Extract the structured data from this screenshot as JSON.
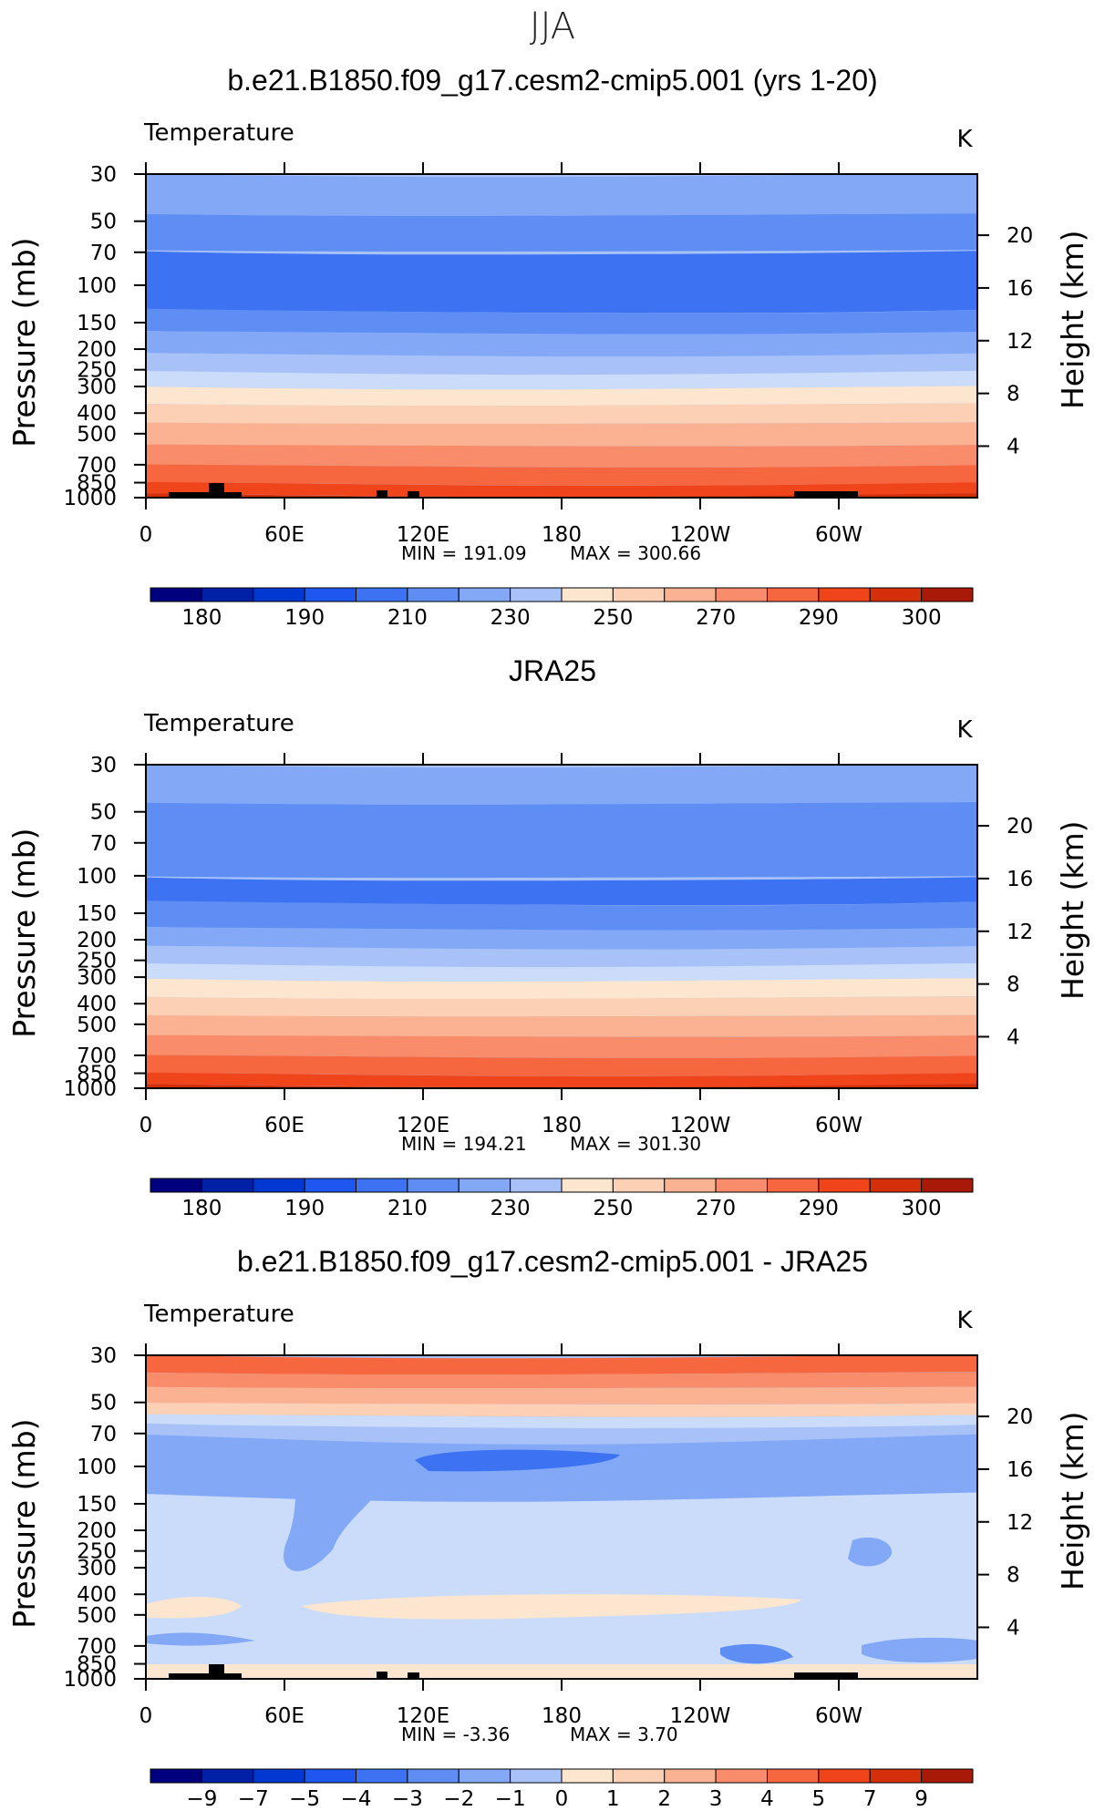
{
  "supertitle": "JJA",
  "colors": {
    "abs": [
      "#00007f",
      "#0021a6",
      "#0039d1",
      "#1e56f0",
      "#3d73f2",
      "#5e8ef3",
      "#83a8f6",
      "#a8c2f8",
      "#cadcfa",
      "#fde6d0",
      "#fcd0b4",
      "#fbb292",
      "#f98d6b",
      "#f6673f",
      "#f0441a",
      "#d42e0b",
      "#a81908",
      "#7a0303"
    ],
    "diff": [
      "#00007f",
      "#0021a6",
      "#0039d1",
      "#1e56f0",
      "#3d73f2",
      "#5e8ef3",
      "#83a8f6",
      "#a8c2f8",
      "#cadcfa",
      "#fde6d0",
      "#fcd0b4",
      "#fbb292",
      "#f98d6b",
      "#f6673f",
      "#f0441a",
      "#d42e0b",
      "#a81908",
      "#7a0303"
    ]
  },
  "panels": [
    {
      "title": "b.e21.B1850.f09_g17.cesm2-cmip5.001 (yrs 1-20)",
      "variable": "Temperature",
      "units": "K",
      "y_axis_label": "Pressure (mb)",
      "y2_axis_label": "Height (km)",
      "min_label": "MIN  =  191.09",
      "max_label": "MAX  =  300.66",
      "colorbar_labels": [
        "180",
        "190",
        "210",
        "230",
        "250",
        "270",
        "290",
        "300"
      ]
    },
    {
      "title": "JRA25",
      "variable": "Temperature",
      "units": "K",
      "y_axis_label": "Pressure (mb)",
      "y2_axis_label": "Height (km)",
      "min_label": "MIN  =  194.21",
      "max_label": "MAX  =  301.30",
      "colorbar_labels": [
        "180",
        "190",
        "210",
        "230",
        "250",
        "270",
        "290",
        "300"
      ]
    },
    {
      "title": "b.e21.B1850.f09_g17.cesm2-cmip5.001 - JRA25",
      "variable": "Temperature",
      "units": "K",
      "y_axis_label": "Pressure (mb)",
      "y2_axis_label": "Height (km)",
      "min_label": "MIN  =     -3.36",
      "max_label": "MAX  =       3.70",
      "colorbar_labels": [
        "−9",
        "−7",
        "−5",
        "−4",
        "−3",
        "−2",
        "−1",
        "0",
        "1",
        "2",
        "3",
        "4",
        "5",
        "7",
        "9"
      ]
    }
  ],
  "chart_data": [
    {
      "type": "heatmap",
      "title": "b.e21.B1850.f09_g17.cesm2-cmip5.001 (yrs 1-20)",
      "variable": "Temperature",
      "units": "K",
      "x_ticks": [
        "0",
        "60E",
        "120E",
        "180",
        "120W",
        "60W"
      ],
      "pressure_ticks": [
        30,
        50,
        70,
        100,
        150,
        200,
        250,
        300,
        400,
        500,
        700,
        850,
        1000
      ],
      "height_ticks_km": [
        4,
        8,
        12,
        16,
        20
      ],
      "ylabel": "Pressure (mb)",
      "y2label": "Height (km)",
      "min": 191.09,
      "max": 300.66,
      "contour_levels": [
        180,
        185,
        190,
        195,
        200,
        210,
        220,
        230,
        240,
        250,
        260,
        270,
        280,
        285,
        290,
        295,
        300
      ],
      "approx_zonal_mean_K_by_pressure": {
        "30": 222,
        "50": 214,
        "70": 208,
        "100": 202,
        "150": 208,
        "200": 218,
        "250": 228,
        "300": 240,
        "400": 253,
        "500": 262,
        "700": 276,
        "850": 285,
        "1000": 293
      }
    },
    {
      "type": "heatmap",
      "title": "JRA25",
      "variable": "Temperature",
      "units": "K",
      "x_ticks": [
        "0",
        "60E",
        "120E",
        "180",
        "120W",
        "60W"
      ],
      "pressure_ticks": [
        30,
        50,
        70,
        100,
        150,
        200,
        250,
        300,
        400,
        500,
        700,
        850,
        1000
      ],
      "height_ticks_km": [
        4,
        8,
        12,
        16,
        20
      ],
      "ylabel": "Pressure (mb)",
      "y2label": "Height (km)",
      "min": 194.21,
      "max": 301.3,
      "contour_levels": [
        180,
        185,
        190,
        195,
        200,
        210,
        220,
        230,
        240,
        250,
        260,
        270,
        280,
        285,
        290,
        295,
        300
      ],
      "approx_zonal_mean_K_by_pressure": {
        "30": 220,
        "50": 212,
        "70": 207,
        "100": 203,
        "150": 209,
        "200": 219,
        "250": 229,
        "300": 240,
        "400": 253,
        "500": 262,
        "700": 276,
        "850": 286,
        "1000": 294
      }
    },
    {
      "type": "heatmap",
      "title": "b.e21.B1850.f09_g17.cesm2-cmip5.001 - JRA25",
      "variable": "Temperature",
      "units": "K",
      "x_ticks": [
        "0",
        "60E",
        "120E",
        "180",
        "120W",
        "60W"
      ],
      "pressure_ticks": [
        30,
        50,
        70,
        100,
        150,
        200,
        250,
        300,
        400,
        500,
        700,
        850,
        1000
      ],
      "height_ticks_km": [
        4,
        8,
        12,
        16,
        20
      ],
      "ylabel": "Pressure (mb)",
      "y2label": "Height (km)",
      "min": -3.36,
      "max": 3.7,
      "contour_levels": [
        -9,
        -7,
        -5,
        -4,
        -3,
        -2,
        -1,
        0,
        1,
        2,
        3,
        4,
        5,
        7,
        9
      ],
      "approx_zonal_mean_K_by_pressure": {
        "30": 3,
        "40": 2,
        "50": 1,
        "70": -2,
        "100": -2,
        "150": -1,
        "200": -0.5,
        "300": -0.5,
        "500": 0.2,
        "700": -0.3,
        "1000": 0.3
      }
    }
  ]
}
